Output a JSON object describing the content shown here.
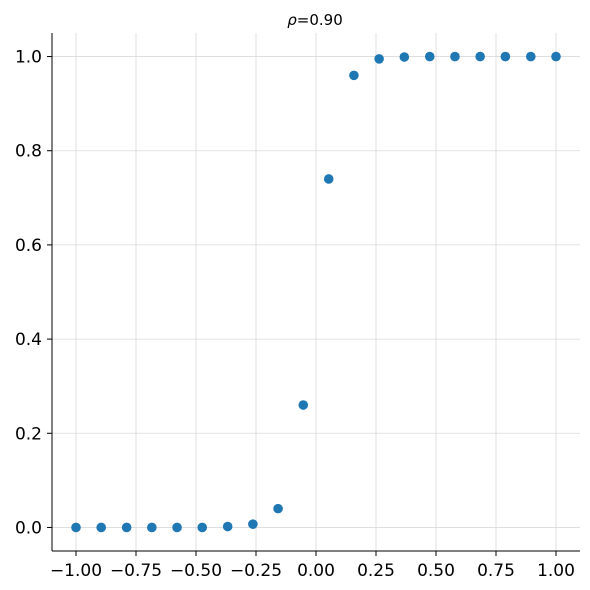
{
  "chart_data": {
    "type": "scatter",
    "title_symbol": "ρ",
    "title_value": "=0.90",
    "x": [
      -1.0,
      -0.895,
      -0.789,
      -0.684,
      -0.579,
      -0.474,
      -0.368,
      -0.263,
      -0.158,
      -0.053,
      0.053,
      0.158,
      0.263,
      0.368,
      0.474,
      0.579,
      0.684,
      0.789,
      0.895,
      1.0
    ],
    "y": [
      0.0,
      0.0,
      0.0,
      0.0,
      0.0,
      0.0,
      0.002,
      0.007,
      0.04,
      0.26,
      0.74,
      0.96,
      0.995,
      0.999,
      1.0,
      1.0,
      1.0,
      1.0,
      1.0,
      1.0
    ],
    "xlim": [
      -1.1,
      1.1
    ],
    "ylim": [
      -0.05,
      1.05
    ],
    "xticks": [
      -1.0,
      -0.75,
      -0.5,
      -0.25,
      0.0,
      0.25,
      0.5,
      0.75,
      1.0
    ],
    "xtick_labels": [
      "−1.00",
      "−0.75",
      "−0.50",
      "−0.25",
      "0.00",
      "0.25",
      "0.50",
      "0.75",
      "1.00"
    ],
    "yticks": [
      0.0,
      0.2,
      0.4,
      0.6,
      0.8,
      1.0
    ],
    "ytick_labels": [
      "0.0",
      "0.2",
      "0.4",
      "0.6",
      "0.8",
      "1.0"
    ],
    "grid": true,
    "marker_color": "#1f77b4"
  }
}
